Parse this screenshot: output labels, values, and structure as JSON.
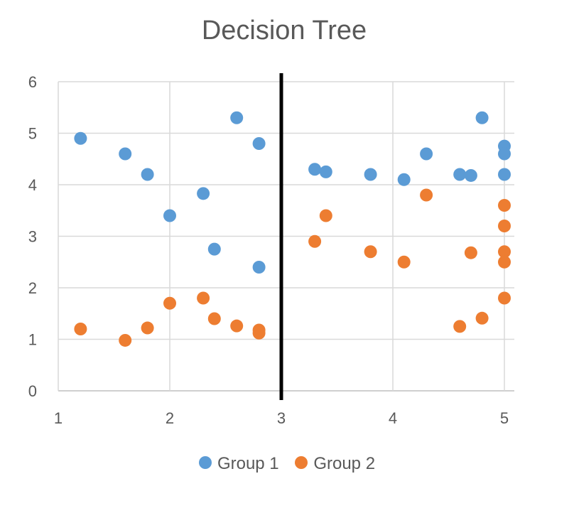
{
  "chart_data": {
    "type": "scatter",
    "title": "Decision Tree",
    "xlim": [
      1,
      5
    ],
    "ylim": [
      0,
      6
    ],
    "x_ticks": [
      "1",
      "2",
      "3",
      "4",
      "5"
    ],
    "y_ticks": [
      "0",
      "1",
      "2",
      "3",
      "4",
      "5",
      "6"
    ],
    "grid": true,
    "legend_position": "bottom",
    "split_line": {
      "x": 3
    },
    "series": [
      {
        "name": "Group 1",
        "color": "#5B9BD5",
        "points": [
          [
            1.2,
            4.9
          ],
          [
            1.6,
            4.6
          ],
          [
            1.8,
            4.2
          ],
          [
            2.0,
            3.4
          ],
          [
            2.3,
            3.83
          ],
          [
            2.4,
            2.75
          ],
          [
            2.6,
            5.3
          ],
          [
            2.8,
            4.8
          ],
          [
            2.8,
            2.4
          ],
          [
            3.3,
            4.3
          ],
          [
            3.4,
            4.25
          ],
          [
            3.8,
            4.2
          ],
          [
            4.1,
            4.1
          ],
          [
            4.3,
            4.6
          ],
          [
            4.6,
            4.2
          ],
          [
            4.7,
            4.18
          ],
          [
            4.8,
            5.3
          ],
          [
            5.0,
            4.75
          ],
          [
            5.0,
            4.6
          ],
          [
            5.0,
            4.2
          ]
        ]
      },
      {
        "name": "Group 2",
        "color": "#ED7D31",
        "points": [
          [
            1.2,
            1.2
          ],
          [
            1.6,
            0.98
          ],
          [
            1.8,
            1.22
          ],
          [
            2.0,
            1.7
          ],
          [
            2.3,
            1.8
          ],
          [
            2.4,
            1.4
          ],
          [
            2.6,
            1.26
          ],
          [
            2.8,
            1.18
          ],
          [
            2.8,
            1.12
          ],
          [
            3.3,
            2.9
          ],
          [
            3.4,
            3.4
          ],
          [
            3.8,
            2.7
          ],
          [
            4.1,
            2.5
          ],
          [
            4.3,
            3.8
          ],
          [
            4.6,
            1.25
          ],
          [
            4.7,
            2.68
          ],
          [
            4.8,
            1.41
          ],
          [
            5.0,
            3.6
          ],
          [
            5.0,
            3.2
          ],
          [
            5.0,
            2.7
          ],
          [
            5.0,
            2.5
          ],
          [
            5.0,
            1.8
          ]
        ]
      }
    ]
  }
}
